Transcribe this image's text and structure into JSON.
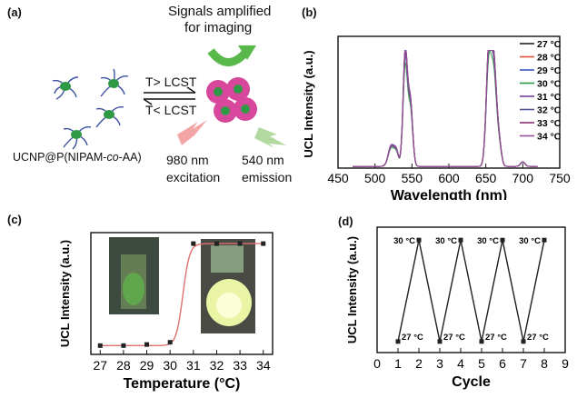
{
  "panel_a": {
    "label": "(a)",
    "signals_line1": "Signals amplified",
    "signals_line2": "for imaging",
    "cond_up": "T> LCST",
    "cond_down": "T< LCST",
    "sample": "UCNP@P(NIPAM-",
    "sample_co": "co",
    "sample_end": "-AA)",
    "excitation_1": "980 nm",
    "excitation_2": "excitation",
    "emission_1": "540 nm",
    "emission_2": "emission",
    "colors": {
      "particle": "#2f9a45",
      "polymer": "#3a4fa0",
      "aggregate": "#d7479b",
      "green_arrow": "#59b84a",
      "red_bolt": "#f08080"
    }
  },
  "chart_data": [
    {
      "type": "line",
      "panel": "(b)",
      "xlabel": "Wavelength  (nm)",
      "ylabel": "UCL Intensity   (a.u.)",
      "xlim": [
        450,
        750
      ],
      "xticks": [
        450,
        500,
        550,
        600,
        650,
        700,
        750
      ],
      "series": [
        {
          "name": "27 °C",
          "color": "#222222",
          "peak_scale": 1.0
        },
        {
          "name": "28 °C",
          "color": "#e74c3c",
          "peak_scale": 1.0
        },
        {
          "name": "29 °C",
          "color": "#3b57c4",
          "peak_scale": 1.0
        },
        {
          "name": "30 °C",
          "color": "#2e9a3e",
          "peak_scale": 0.86
        },
        {
          "name": "31 °C",
          "color": "#7b3fa0",
          "peak_scale": 0.94
        },
        {
          "name": "32 °C",
          "color": "#555599",
          "peak_scale": 0.92
        },
        {
          "name": "33 °C",
          "color": "#8a2f6f",
          "peak_scale": 0.96
        },
        {
          "name": "34 °C",
          "color": "#9a4f9a",
          "peak_scale": 0.98
        }
      ],
      "peaks": [
        {
          "center": 522,
          "width": 4,
          "height": 0.18
        },
        {
          "center": 529,
          "width": 3,
          "height": 0.12
        },
        {
          "center": 541,
          "width": 3,
          "height": 1.0
        },
        {
          "center": 548,
          "width": 3,
          "height": 0.55
        },
        {
          "center": 654,
          "width": 3.5,
          "height": 1.0
        },
        {
          "center": 661,
          "width": 3.5,
          "height": 0.85
        },
        {
          "center": 668,
          "width": 3,
          "height": 0.2
        },
        {
          "center": 700,
          "width": 3,
          "height": 0.04
        }
      ]
    },
    {
      "type": "scatter",
      "panel": "(c)",
      "xlabel": "Temperature (°C)",
      "ylabel": "UCL Intensity   (a.u.)",
      "xlim": [
        26.6,
        34.4
      ],
      "ylim": [
        0,
        1
      ],
      "xticks": [
        27,
        28,
        29,
        30,
        31,
        32,
        33,
        34
      ],
      "x": [
        27,
        28,
        29,
        30,
        31,
        32,
        33,
        34
      ],
      "y": [
        0.03,
        0.03,
        0.04,
        0.06,
        0.95,
        0.95,
        0.95,
        0.95
      ],
      "fit_color": "#e07070"
    },
    {
      "type": "line",
      "panel": "(d)",
      "xlabel": "Cycle",
      "ylabel": "UCL Intensity   (a.u.)",
      "xlim": [
        0,
        9
      ],
      "xticks": [
        0,
        1,
        2,
        3,
        4,
        5,
        6,
        7,
        8,
        9
      ],
      "x": [
        1,
        2,
        3,
        4,
        5,
        6,
        7,
        8
      ],
      "y": [
        0.05,
        0.95,
        0.05,
        0.95,
        0.05,
        0.95,
        0.05,
        0.95
      ],
      "point_labels": [
        "27 °C",
        "30 °C",
        "27 °C",
        "30 °C",
        "27 °C",
        "30 °C",
        "27 °C",
        "30 °C"
      ]
    }
  ]
}
